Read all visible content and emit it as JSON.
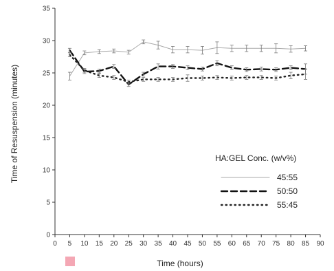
{
  "chart_data": {
    "type": "line",
    "title": "",
    "xlabel": "Time (hours)",
    "ylabel": "Time of Resuspension (minutes)",
    "xlim": [
      0,
      90
    ],
    "ylim": [
      0,
      35
    ],
    "xticks": [
      0,
      5,
      10,
      15,
      20,
      25,
      30,
      35,
      40,
      45,
      50,
      55,
      60,
      65,
      70,
      75,
      80,
      85,
      90
    ],
    "yticks": [
      0,
      5,
      10,
      15,
      20,
      25,
      30,
      35
    ],
    "grid": false,
    "legend_title": "HA:GEL Conc. (w/v%)",
    "legend_position": "right",
    "x": [
      5,
      10,
      15,
      20,
      25,
      30,
      35,
      40,
      45,
      50,
      55,
      60,
      65,
      70,
      75,
      80,
      85
    ],
    "series": [
      {
        "name": "45:55",
        "style": "solid-thin",
        "color": "#aaaaaa",
        "values": [
          24.5,
          28.1,
          28.3,
          28.4,
          28.2,
          29.8,
          29.3,
          28.6,
          28.6,
          28.5,
          28.9,
          28.8,
          28.8,
          28.8,
          28.8,
          28.7,
          28.8
        ],
        "errors": [
          0.6,
          0.3,
          0.3,
          0.3,
          0.3,
          0.3,
          0.6,
          0.5,
          0.5,
          0.6,
          0.9,
          0.5,
          0.5,
          0.5,
          0.7,
          0.5,
          0.4
        ]
      },
      {
        "name": "50:50",
        "style": "dashed",
        "color": "#111111",
        "values": [
          28.5,
          25.2,
          25.3,
          26.0,
          23.2,
          24.8,
          26.0,
          26.0,
          25.8,
          25.6,
          26.5,
          25.8,
          25.5,
          25.6,
          25.5,
          25.8,
          25.6
        ],
        "errors": [
          0.3,
          0.3,
          0.3,
          0.3,
          0.3,
          0.3,
          0.4,
          0.3,
          0.3,
          0.3,
          0.4,
          0.3,
          0.3,
          0.3,
          0.3,
          0.3,
          0.8
        ]
      },
      {
        "name": "55:45",
        "style": "dotted",
        "color": "#222222",
        "values": [
          27.8,
          25.4,
          24.6,
          24.3,
          23.6,
          24.0,
          24.0,
          24.0,
          24.2,
          24.2,
          24.3,
          24.2,
          24.3,
          24.3,
          24.2,
          24.6,
          24.8
        ],
        "errors": [
          0.3,
          0.3,
          0.3,
          0.3,
          0.3,
          0.3,
          0.3,
          0.3,
          0.5,
          0.3,
          0.3,
          0.3,
          0.3,
          0.3,
          0.3,
          0.5,
          0.8
        ]
      }
    ]
  }
}
